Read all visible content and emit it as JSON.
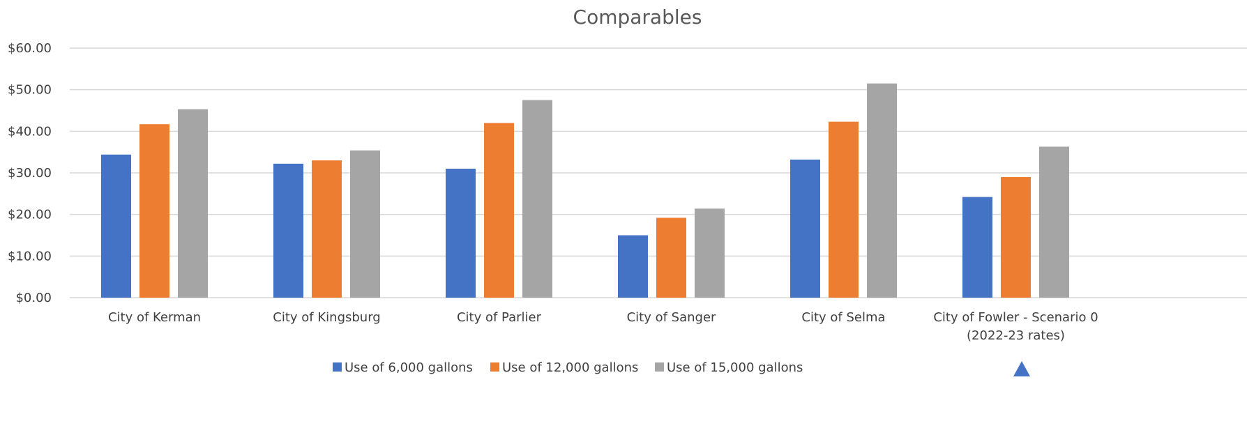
{
  "chart_data": {
    "type": "bar",
    "title": "Comparables",
    "xlabel": "",
    "ylabel": "",
    "ylim": [
      0,
      60
    ],
    "yticks": [
      0,
      10,
      20,
      30,
      40,
      50,
      60
    ],
    "ytick_labels": [
      "$0.00",
      "$10.00",
      "$20.00",
      "$30.00",
      "$40.00",
      "$50.00",
      "$60.00"
    ],
    "grid": true,
    "legend_position": "bottom",
    "categories": [
      [
        "City of Kerman"
      ],
      [
        "City of Kingsburg"
      ],
      [
        "City of Parlier"
      ],
      [
        "City of Sanger"
      ],
      [
        "City of Selma"
      ],
      [
        "City of Fowler - Scenario 0",
        "(2022-23 rates)"
      ]
    ],
    "series": [
      {
        "name": "Use of 6,000 gallons",
        "color": "#4472c4",
        "values": [
          34.4,
          32.2,
          31.0,
          15.0,
          33.2,
          24.2
        ]
      },
      {
        "name": "Use of 12,000 gallons",
        "color": "#ed7d31",
        "values": [
          41.7,
          33.0,
          42.0,
          19.2,
          42.3,
          29.0
        ]
      },
      {
        "name": "Use of 15,000 gallons",
        "color": "#a5a5a5",
        "values": [
          45.3,
          35.4,
          47.5,
          21.4,
          51.5,
          36.3
        ]
      }
    ],
    "marker": {
      "icon": "triangle-up-icon",
      "color": "#4472c4"
    }
  }
}
